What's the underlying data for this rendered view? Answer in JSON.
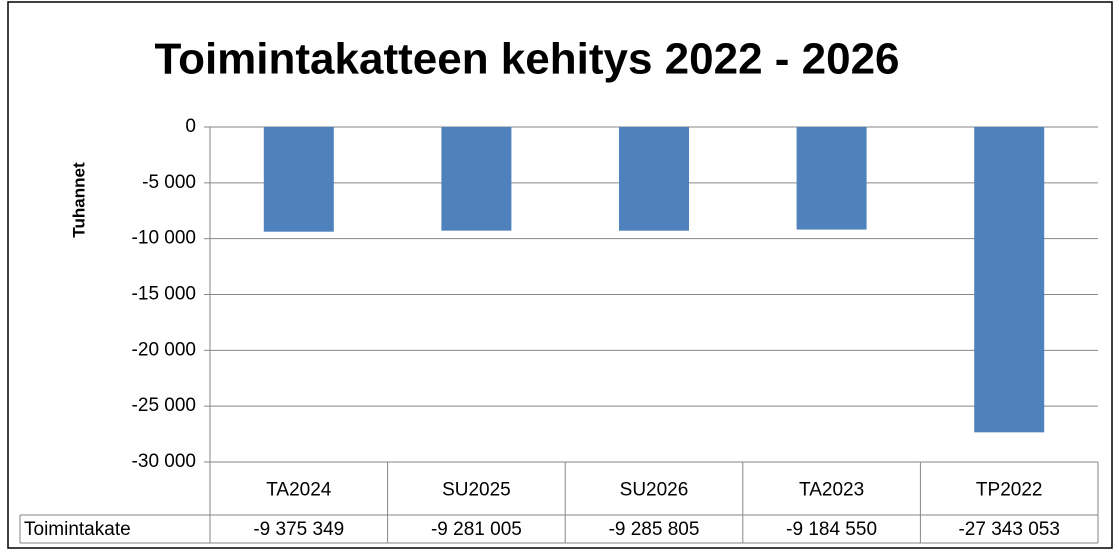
{
  "chart_data": {
    "type": "bar",
    "title": "Toimintakatteen kehitys 2022 - 2026",
    "y_label": "Tuhannet",
    "categories": [
      "TA2024",
      "SU2025",
      "SU2026",
      "TA2023",
      "TP2022"
    ],
    "series": [
      {
        "name": "Toimintakate",
        "color": "#4f81bd",
        "values": [
          -9375.349,
          -9281.005,
          -9285.805,
          -9184.55,
          -27343.053
        ],
        "value_labels": [
          "-9 375 349",
          "-9 281 005",
          "-9 285 805",
          "-9 184 550",
          "-27 343 053"
        ]
      }
    ],
    "ylim": [
      -30000,
      0
    ],
    "yticks": [
      0,
      {
        "value": -5000,
        "label": "-5 000"
      },
      {
        "value": -10000,
        "label": "-10 000"
      },
      {
        "value": -15000,
        "label": "-15 000"
      },
      {
        "value": -20000,
        "label": "-20 000"
      },
      {
        "value": -25000,
        "label": "-25 000"
      },
      {
        "value": -30000,
        "label": "-30 000"
      }
    ],
    "grid": true,
    "data_table": true
  }
}
